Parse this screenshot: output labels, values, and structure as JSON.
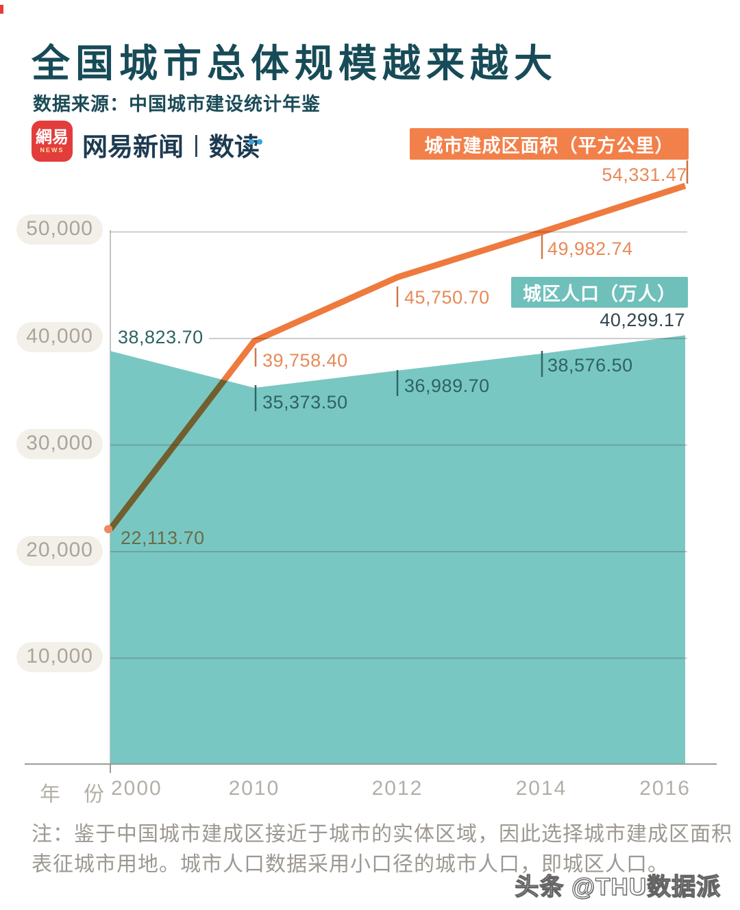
{
  "header": {
    "title": "全国城市总体规模越来越大",
    "source": "数据来源：中国城市建设统计年鉴",
    "logo": {
      "badge_cn": "網易",
      "badge_en": "NEWS",
      "brand": "网易新闻",
      "separator": "|",
      "sub_brand": "数读"
    }
  },
  "chart_data": {
    "type": "line+area",
    "categories": [
      "2000",
      "2010",
      "2012",
      "2014",
      "2016"
    ],
    "x_title": "年　份",
    "series": [
      {
        "name": "城市建成区面积（平方公里）",
        "type": "line",
        "color": "#ee7a3e",
        "values": [
          22113.7,
          39758.4,
          45750.7,
          49982.74,
          54331.47
        ],
        "labels": [
          "22,113.70",
          "39,758.40",
          "45,750.70",
          "49,982.74",
          "54,331.47"
        ]
      },
      {
        "name": "城区人口（万人）",
        "type": "area",
        "color": "#79c7c2",
        "values": [
          38823.7,
          35373.5,
          36989.7,
          38576.5,
          40299.17
        ],
        "labels": [
          "38,823.70",
          "35,373.50",
          "36,989.70",
          "38,576.50",
          "40,299.17"
        ]
      }
    ],
    "ylim": [
      0,
      50000
    ],
    "yticks": [
      "50,000",
      "40,000",
      "30,000",
      "20,000",
      "10,000"
    ],
    "ytick_values": [
      50000,
      40000,
      30000,
      20000,
      10000
    ],
    "grid": true,
    "legend_position": "inside-top-right"
  },
  "note": {
    "line1": "注：鉴于中国城市建成区接近于城市的实体区域，因此选择城市建成区面积",
    "line2": "表征城市用地。城市人口数据采用小口径的城市人口，即城区人口。"
  },
  "watermark": "头条 @THU数据派",
  "colors": {
    "title": "#174b57",
    "orange_line": "#ee7a3e",
    "orange_label": "#e78a58",
    "teal_area": "#79c7c2",
    "teal_dark_label": "#2d6362",
    "legend_area_bg": "#f2804a",
    "legend_pop_bg": "#6fc0ba",
    "axis_text": "#b3afa7",
    "logo_red": "#e23d3b"
  }
}
